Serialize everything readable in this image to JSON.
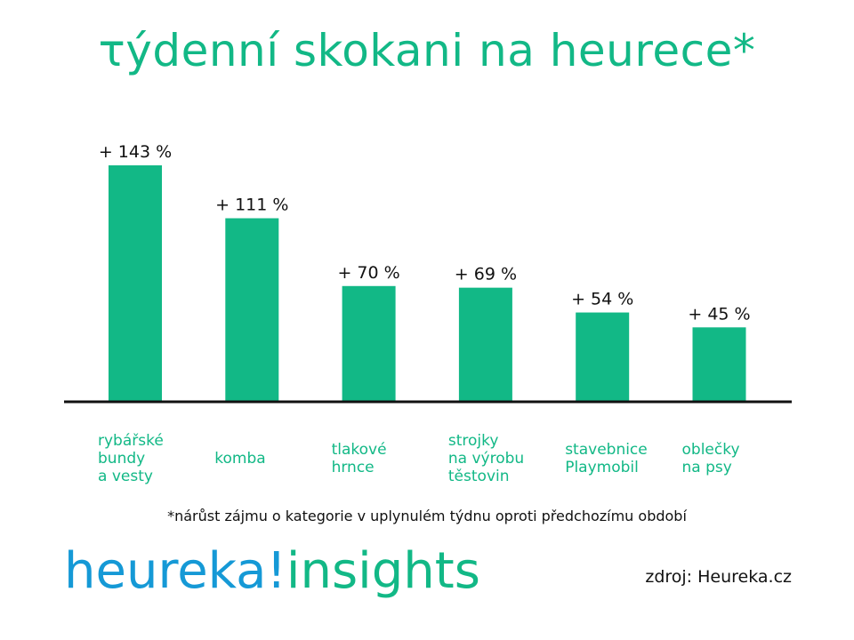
{
  "title": "τýdenní skokani na heurece*",
  "footnote": "*nárůst zájmu o kategorie v uplynulém týdnu oproti předchozímu období",
  "brand": {
    "part1": "heureka!",
    "part2": "insights"
  },
  "source": "zdroj: Heureka.cz",
  "colors": {
    "bar": "#12B886",
    "category_text": "#12B886",
    "value_text": "#111111",
    "axis": "#111111",
    "brand_blue": "#1599D6",
    "brand_green": "#12B886"
  },
  "chart_data": {
    "type": "bar",
    "categories": [
      [
        "rybářské",
        "bundy",
        "a vesty"
      ],
      [
        "komba"
      ],
      [
        "tlakové",
        "hrnce"
      ],
      [
        "strojky",
        "na výrobu",
        "těstovin"
      ],
      [
        "stavebnice",
        "Playmobil"
      ],
      [
        "oblečky",
        "na psy"
      ]
    ],
    "values": [
      143,
      111,
      70,
      69,
      54,
      45
    ],
    "value_labels": [
      "+ 143 %",
      "+ 111 %",
      "+ 70 %",
      "+ 69 %",
      "+ 54 %",
      "+ 45 %"
    ],
    "ylim": [
      0,
      143
    ],
    "grid": false
  }
}
